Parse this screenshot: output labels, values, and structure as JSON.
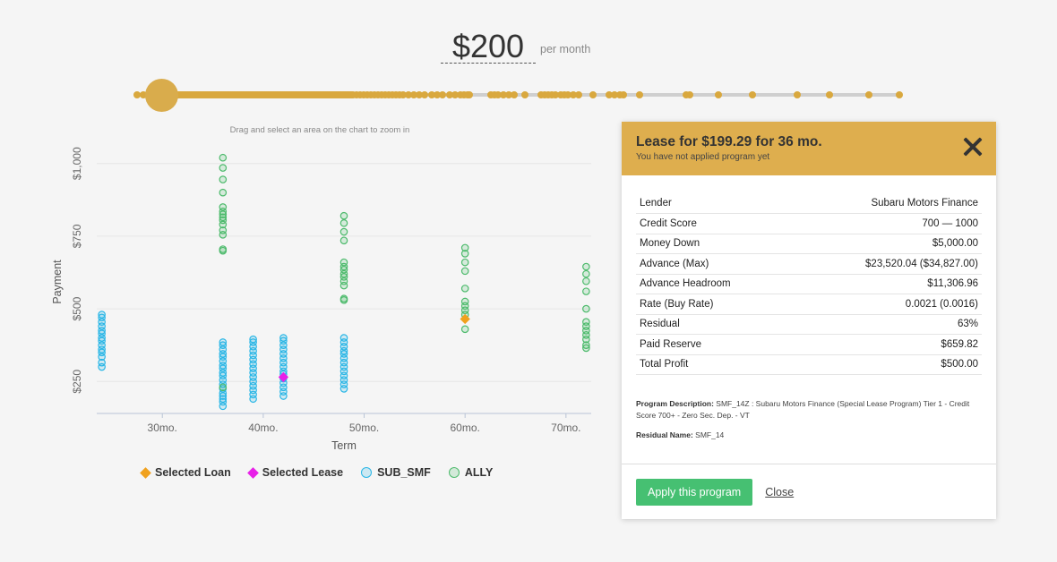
{
  "header": {
    "amount": "$200",
    "per_month": "per month"
  },
  "slider": {
    "value_index": 0,
    "stops": [
      1,
      8,
      14,
      20,
      22,
      24,
      26,
      28,
      30,
      32,
      34,
      36,
      38,
      40,
      42,
      44,
      46,
      48,
      50,
      52,
      54,
      56,
      58,
      60,
      62,
      64,
      66,
      68,
      70,
      72,
      74,
      76,
      78,
      80,
      82,
      84,
      86,
      88,
      90,
      92,
      94,
      96,
      98,
      100,
      102,
      104,
      106,
      108,
      110,
      112,
      114,
      116,
      118,
      120,
      122,
      124,
      126,
      128,
      130,
      132,
      134,
      136,
      138,
      140,
      142,
      144,
      146,
      148,
      150,
      152,
      154,
      156,
      158,
      160,
      162,
      164,
      166,
      168,
      170,
      172,
      174,
      176,
      178,
      180,
      182,
      184,
      186,
      188,
      190,
      192,
      194,
      196,
      198,
      200,
      202,
      204,
      206,
      208,
      210,
      212,
      214,
      216,
      218,
      220,
      222,
      224,
      226,
      228,
      230,
      232,
      234,
      236,
      238,
      240,
      242,
      246,
      250,
      254,
      258,
      262,
      266,
      270,
      274,
      278,
      282,
      286,
      290,
      294,
      298,
      304,
      310,
      316,
      322,
      330,
      336,
      342,
      350,
      356,
      362,
      366,
      370,
      372,
      396,
      400,
      404,
      410,
      416,
      422,
      434,
      452,
      456,
      460,
      464,
      468,
      474,
      478,
      482,
      488,
      494,
      510,
      528,
      534,
      540,
      544,
      562,
      614,
      618,
      650,
      688,
      738,
      774,
      818,
      852
    ]
  },
  "chart": {
    "hint": "Drag and select an area on the chart to zoom in",
    "colors": {
      "sub_smf": "#29b6e6",
      "ally": "#4cba6b",
      "selected_loan": "#f0a11e",
      "selected_lease": "#e820e8"
    }
  },
  "chart_data": {
    "type": "scatter",
    "xlabel": "Term",
    "ylabel": "Payment",
    "xlim": [
      23.5,
      72.5
    ],
    "ylim": [
      140,
      1070
    ],
    "x_ticks": [
      30,
      40,
      50,
      60,
      70
    ],
    "x_tick_labels": [
      "30mo.",
      "40mo.",
      "50mo.",
      "60mo.",
      "70mo."
    ],
    "y_ticks": [
      250,
      500,
      750,
      1000
    ],
    "y_tick_labels": [
      "$250",
      "$500",
      "$750",
      "$1,000"
    ],
    "grid": true,
    "legend_position": "bottom",
    "series": [
      {
        "name": "SUB_SMF",
        "marker": "circle",
        "points": [
          [
            24,
            300
          ],
          [
            24,
            315
          ],
          [
            24,
            335
          ],
          [
            24,
            350
          ],
          [
            24,
            360
          ],
          [
            24,
            375
          ],
          [
            24,
            390
          ],
          [
            24,
            400
          ],
          [
            24,
            415
          ],
          [
            24,
            425
          ],
          [
            24,
            440
          ],
          [
            24,
            455
          ],
          [
            24,
            470
          ],
          [
            24,
            480
          ],
          [
            36,
            165
          ],
          [
            36,
            180
          ],
          [
            36,
            190
          ],
          [
            36,
            200
          ],
          [
            36,
            210
          ],
          [
            36,
            225
          ],
          [
            36,
            240
          ],
          [
            36,
            255
          ],
          [
            36,
            270
          ],
          [
            36,
            280
          ],
          [
            36,
            295
          ],
          [
            36,
            305
          ],
          [
            36,
            320
          ],
          [
            36,
            335
          ],
          [
            36,
            345
          ],
          [
            36,
            360
          ],
          [
            36,
            375
          ],
          [
            36,
            385
          ],
          [
            39,
            190
          ],
          [
            39,
            205
          ],
          [
            39,
            220
          ],
          [
            39,
            235
          ],
          [
            39,
            250
          ],
          [
            39,
            265
          ],
          [
            39,
            280
          ],
          [
            39,
            295
          ],
          [
            39,
            310
          ],
          [
            39,
            325
          ],
          [
            39,
            340
          ],
          [
            39,
            355
          ],
          [
            39,
            370
          ],
          [
            39,
            385
          ],
          [
            39,
            395
          ],
          [
            42,
            200
          ],
          [
            42,
            215
          ],
          [
            42,
            230
          ],
          [
            42,
            245
          ],
          [
            42,
            260
          ],
          [
            42,
            275
          ],
          [
            42,
            285
          ],
          [
            42,
            300
          ],
          [
            42,
            315
          ],
          [
            42,
            330
          ],
          [
            42,
            345
          ],
          [
            42,
            360
          ],
          [
            42,
            375
          ],
          [
            42,
            390
          ],
          [
            42,
            400
          ],
          [
            48,
            225
          ],
          [
            48,
            240
          ],
          [
            48,
            255
          ],
          [
            48,
            270
          ],
          [
            48,
            285
          ],
          [
            48,
            300
          ],
          [
            48,
            315
          ],
          [
            48,
            330
          ],
          [
            48,
            345
          ],
          [
            48,
            355
          ],
          [
            48,
            370
          ],
          [
            48,
            385
          ],
          [
            48,
            400
          ]
        ]
      },
      {
        "name": "ALLY",
        "marker": "circle",
        "points": [
          [
            36,
            700
          ],
          [
            36,
            705
          ],
          [
            36,
            755
          ],
          [
            36,
            770
          ],
          [
            36,
            790
          ],
          [
            36,
            805
          ],
          [
            36,
            815
          ],
          [
            36,
            825
          ],
          [
            36,
            835
          ],
          [
            36,
            850
          ],
          [
            36,
            900
          ],
          [
            36,
            945
          ],
          [
            36,
            985
          ],
          [
            36,
            1020
          ],
          [
            36,
            230
          ],
          [
            48,
            530
          ],
          [
            48,
            535
          ],
          [
            48,
            580
          ],
          [
            48,
            595
          ],
          [
            48,
            610
          ],
          [
            48,
            620
          ],
          [
            48,
            635
          ],
          [
            48,
            645
          ],
          [
            48,
            660
          ],
          [
            48,
            735
          ],
          [
            48,
            765
          ],
          [
            48,
            795
          ],
          [
            48,
            820
          ],
          [
            60,
            430
          ],
          [
            60,
            480
          ],
          [
            60,
            495
          ],
          [
            60,
            510
          ],
          [
            60,
            525
          ],
          [
            60,
            570
          ],
          [
            60,
            630
          ],
          [
            60,
            660
          ],
          [
            60,
            690
          ],
          [
            60,
            710
          ],
          [
            72,
            365
          ],
          [
            72,
            375
          ],
          [
            72,
            395
          ],
          [
            72,
            410
          ],
          [
            72,
            425
          ],
          [
            72,
            440
          ],
          [
            72,
            455
          ],
          [
            72,
            500
          ],
          [
            72,
            560
          ],
          [
            72,
            595
          ],
          [
            72,
            620
          ],
          [
            72,
            645
          ]
        ]
      },
      {
        "name": "Selected Loan",
        "marker": "diamond",
        "points": [
          [
            60,
            465
          ]
        ]
      },
      {
        "name": "Selected Lease",
        "marker": "diamond",
        "points": [
          [
            42,
            265
          ]
        ]
      }
    ]
  },
  "legend": [
    {
      "label": "Selected Loan",
      "shape": "diamond",
      "color": "#f0a11e"
    },
    {
      "label": "Selected Lease",
      "shape": "diamond",
      "color": "#e820e8"
    },
    {
      "label": "SUB_SMF",
      "shape": "circle",
      "color": "#29b6e6"
    },
    {
      "label": "ALLY",
      "shape": "circle",
      "color": "#4cba6b"
    }
  ],
  "panel": {
    "title": "Lease for $199.29 for 36 mo.",
    "subtitle": "You have not applied program yet",
    "rows": [
      {
        "label": "Lender",
        "value": "Subaru Motors Finance"
      },
      {
        "label": "Credit Score",
        "value": "700 — 1000"
      },
      {
        "label": "Money Down",
        "value": "$5,000.00"
      },
      {
        "label": "Advance (Max)",
        "value": "$23,520.04 ($34,827.00)"
      },
      {
        "label": "Advance Headroom",
        "value": "$11,306.96"
      },
      {
        "label": "Rate (Buy Rate)",
        "value": "0.0021 (0.0016)"
      },
      {
        "label": "Residual",
        "value": "63%"
      },
      {
        "label": "Paid Reserve",
        "value": "$659.82"
      },
      {
        "label": "Total Profit",
        "value": "$500.00"
      }
    ],
    "program_description_label": "Program Description:",
    "program_description": "SMF_14Z : Subaru Motors Finance (Special Lease Program) Tier 1 - Credit Score 700+ - Zero Sec. Dep. - VT",
    "residual_name_label": "Residual Name:",
    "residual_name": "SMF_14",
    "apply_label": "Apply this program",
    "close_label": "Close"
  }
}
